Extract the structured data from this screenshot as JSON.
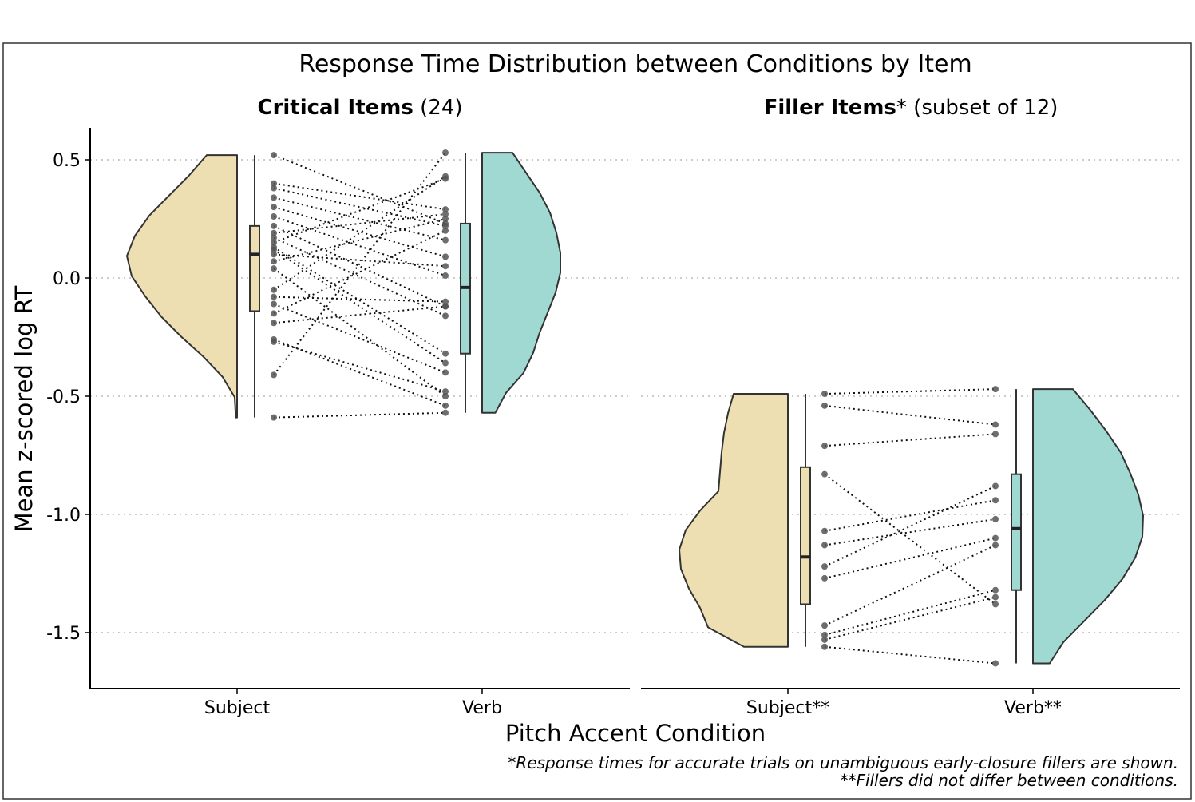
{
  "chart_data": {
    "type": "raincloud",
    "title": "Response Time Distribution between Conditions by Item",
    "xlabel": "Pitch Accent Condition",
    "ylabel": "Mean z-scored log RT",
    "ylim": [
      -1.73,
      0.64
    ],
    "yticks": [
      0.5,
      0.0,
      -0.5,
      -1.0,
      -1.5
    ],
    "ytick_labels": [
      "0.5",
      "0.0",
      "-0.5",
      "-1.0",
      "-1.5"
    ],
    "grid": "horizontal dotted",
    "colors": {
      "subject": "#EEDFB2",
      "verb": "#A0D8D2",
      "line": "#333333",
      "point": "#555555"
    },
    "panels": [
      {
        "strip_bold": "Critical Items",
        "strip_rest": " (24)",
        "categories": [
          "Subject",
          "Verb"
        ],
        "boxplots": [
          {
            "q1": -0.14,
            "median": 0.1,
            "q3": 0.22,
            "min": -0.59,
            "max": 0.52
          },
          {
            "q1": -0.32,
            "median": -0.04,
            "q3": 0.23,
            "min": -0.57,
            "max": 0.53
          }
        ],
        "density_extent": [
          [
            -0.59,
            0.52
          ],
          [
            -0.57,
            0.53
          ]
        ],
        "pairs": [
          [
            0.52,
            0.23
          ],
          [
            0.4,
            0.29
          ],
          [
            0.38,
            0.22
          ],
          [
            0.34,
            0.16
          ],
          [
            0.3,
            0.09
          ],
          [
            0.26,
            0.01
          ],
          [
            0.22,
            -0.12
          ],
          [
            0.19,
            0.27
          ],
          [
            0.17,
            -0.16
          ],
          [
            0.15,
            0.42
          ],
          [
            0.13,
            -0.32
          ],
          [
            0.12,
            -0.36
          ],
          [
            0.1,
            0.05
          ],
          [
            0.07,
            0.25
          ],
          [
            0.04,
            -0.5
          ],
          [
            -0.05,
            0.43
          ],
          [
            -0.08,
            -0.1
          ],
          [
            -0.11,
            -0.4
          ],
          [
            -0.15,
            0.2
          ],
          [
            -0.19,
            -0.12
          ],
          [
            -0.26,
            -0.54
          ],
          [
            -0.27,
            -0.48
          ],
          [
            -0.41,
            0.53
          ],
          [
            -0.59,
            -0.57
          ]
        ]
      },
      {
        "strip_bold": "Filler Items",
        "strip_rest": "* (subset of 12)",
        "categories": [
          "Subject**",
          "Verb**"
        ],
        "boxplots": [
          {
            "q1": -1.38,
            "median": -1.18,
            "q3": -0.8,
            "min": -1.56,
            "max": -0.49
          },
          {
            "q1": -1.32,
            "median": -1.06,
            "q3": -0.83,
            "min": -1.63,
            "max": -0.47
          }
        ],
        "density_extent": [
          [
            -1.56,
            -0.49
          ],
          [
            -1.63,
            -0.47
          ]
        ],
        "pairs": [
          [
            -0.49,
            -0.47
          ],
          [
            -0.54,
            -0.62
          ],
          [
            -0.71,
            -0.66
          ],
          [
            -0.83,
            -1.38
          ],
          [
            -1.07,
            -0.94
          ],
          [
            -1.13,
            -1.02
          ],
          [
            -1.22,
            -0.88
          ],
          [
            -1.27,
            -1.1
          ],
          [
            -1.47,
            -1.13
          ],
          [
            -1.51,
            -1.32
          ],
          [
            -1.53,
            -1.35
          ],
          [
            -1.56,
            -1.63
          ]
        ]
      }
    ],
    "caption_lines": [
      "*Response times for accurate trials on unambiguous early-closure fillers are shown.",
      "**Fillers did not differ between conditions."
    ]
  }
}
